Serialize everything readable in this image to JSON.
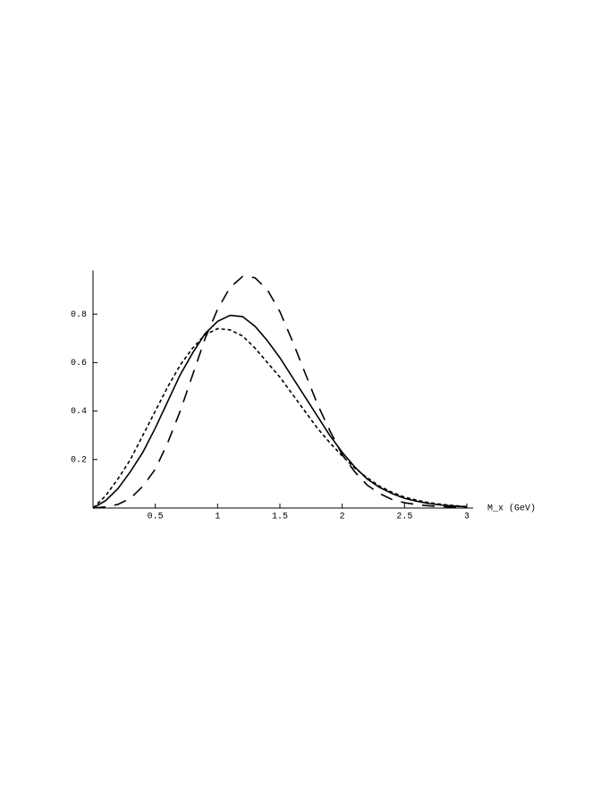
{
  "chart_data": {
    "type": "line",
    "x_label": "M_x (GeV)",
    "x": [
      0,
      0.1,
      0.2,
      0.3,
      0.4,
      0.5,
      0.6,
      0.7,
      0.8,
      0.9,
      1.0,
      1.1,
      1.2,
      1.3,
      1.4,
      1.5,
      1.6,
      1.7,
      1.8,
      1.9,
      2.0,
      2.1,
      2.2,
      2.3,
      2.4,
      2.5,
      2.6,
      2.7,
      2.8,
      2.9,
      3.0
    ],
    "series": [
      {
        "color": "#000000",
        "style": "solid",
        "values": [
          0,
          0.03,
          0.08,
          0.15,
          0.23,
          0.33,
          0.44,
          0.55,
          0.64,
          0.72,
          0.77,
          0.795,
          0.79,
          0.75,
          0.69,
          0.62,
          0.54,
          0.46,
          0.38,
          0.3,
          0.23,
          0.17,
          0.12,
          0.085,
          0.06,
          0.04,
          0.028,
          0.018,
          0.012,
          0.008,
          0.005
        ]
      },
      {
        "color": "#000000",
        "style": "dotted",
        "values": [
          0,
          0.05,
          0.12,
          0.2,
          0.3,
          0.4,
          0.5,
          0.59,
          0.66,
          0.715,
          0.74,
          0.735,
          0.71,
          0.66,
          0.6,
          0.54,
          0.47,
          0.4,
          0.33,
          0.27,
          0.215,
          0.165,
          0.125,
          0.09,
          0.065,
          0.045,
          0.032,
          0.022,
          0.015,
          0.01,
          0.006
        ]
      },
      {
        "color": "#000000",
        "style": "dashed",
        "values": [
          0,
          0.005,
          0.015,
          0.04,
          0.09,
          0.16,
          0.27,
          0.4,
          0.55,
          0.7,
          0.82,
          0.91,
          0.955,
          0.95,
          0.9,
          0.81,
          0.69,
          0.56,
          0.43,
          0.32,
          0.22,
          0.15,
          0.095,
          0.06,
          0.035,
          0.022,
          0.014,
          0.009,
          0.006,
          0.004,
          0.002
        ]
      }
    ],
    "xlim": [
      0,
      3.05
    ],
    "ylim": [
      0,
      0.98
    ],
    "xticks": [
      0.5,
      1,
      1.5,
      2,
      2.5,
      3
    ],
    "yticks": [
      0.2,
      0.4,
      0.6,
      0.8
    ],
    "grid": false
  }
}
